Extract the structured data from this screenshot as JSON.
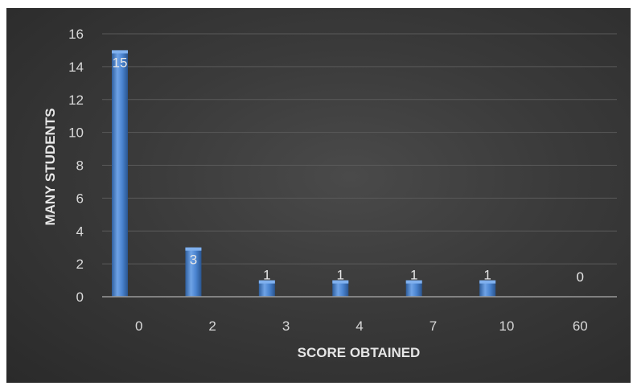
{
  "chart_data": {
    "type": "bar",
    "categories": [
      "0",
      "2",
      "3",
      "4",
      "7",
      "10",
      "60"
    ],
    "values": [
      15,
      3,
      1,
      1,
      1,
      1,
      0
    ],
    "data_labels": [
      "15",
      "3",
      "1",
      "1",
      "1",
      "1",
      "0"
    ],
    "title": "",
    "xlabel": "SCORE OBTAINED",
    "ylabel": "MANY STUDENTS",
    "ylim": [
      0,
      16
    ],
    "yticks": [
      0,
      2,
      4,
      6,
      8,
      10,
      12,
      14,
      16
    ],
    "grid": true,
    "legend": "none",
    "colors": {
      "background": "#3a3a3a",
      "bar": "#3f78c4",
      "bar_highlight": "#7fb0ee",
      "text": "#d9d9d9"
    }
  }
}
